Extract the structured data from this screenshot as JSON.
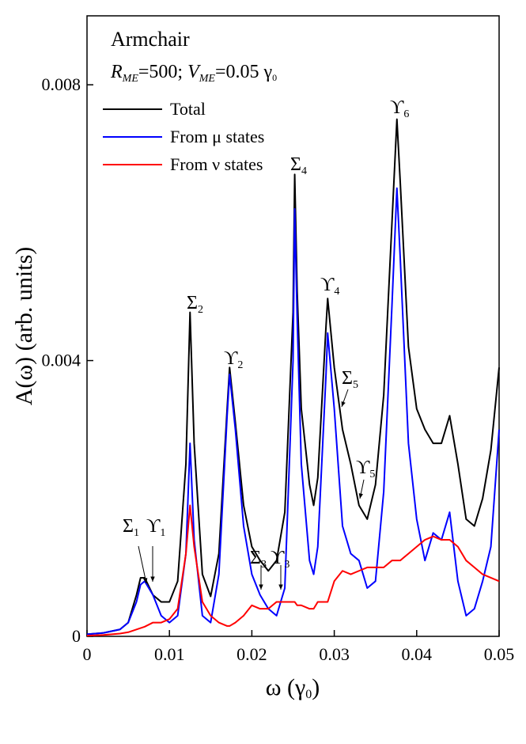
{
  "chart_data": {
    "type": "line",
    "title": "Armchair",
    "subtitle_parts": [
      "R",
      "ME",
      "=500; ",
      "V",
      "ME",
      "=0.05 γ",
      "0"
    ],
    "xlabel_parts": [
      "ω (γ",
      "0",
      ")"
    ],
    "ylabel": "A(ω) (arb. units)",
    "xlim": [
      0,
      0.05
    ],
    "ylim": [
      0,
      0.009
    ],
    "xticks": [
      0,
      0.01,
      0.02,
      0.03,
      0.04,
      0.05
    ],
    "yticks": [
      0,
      0.004,
      0.008
    ],
    "legend": "upper left",
    "x": [
      0,
      0.002,
      0.004,
      0.005,
      0.006,
      0.0065,
      0.007,
      0.008,
      0.009,
      0.01,
      0.011,
      0.012,
      0.0125,
      0.013,
      0.014,
      0.015,
      0.016,
      0.017,
      0.0173,
      0.018,
      0.019,
      0.02,
      0.021,
      0.022,
      0.023,
      0.024,
      0.025,
      0.0252,
      0.0255,
      0.026,
      0.027,
      0.0275,
      0.028,
      0.029,
      0.0292,
      0.03,
      0.031,
      0.032,
      0.033,
      0.034,
      0.035,
      0.036,
      0.037,
      0.0376,
      0.038,
      0.039,
      0.04,
      0.041,
      0.042,
      0.043,
      0.044,
      0.045,
      0.046,
      0.047,
      0.048,
      0.049,
      0.05
    ],
    "series": [
      {
        "name": "Total",
        "color": "#000000",
        "values": [
          3e-05,
          5e-05,
          0.0001,
          0.0002,
          0.0006,
          0.00085,
          0.00085,
          0.0006,
          0.0005,
          0.0005,
          0.0008,
          0.0025,
          0.0047,
          0.0028,
          0.0009,
          0.00058,
          0.0012,
          0.0033,
          0.0039,
          0.0031,
          0.0019,
          0.0013,
          0.0011,
          0.00095,
          0.0011,
          0.0018,
          0.0047,
          0.0067,
          0.005,
          0.0033,
          0.0022,
          0.0019,
          0.0023,
          0.0045,
          0.0049,
          0.0039,
          0.003,
          0.0025,
          0.0019,
          0.0017,
          0.0022,
          0.0035,
          0.006,
          0.0075,
          0.0066,
          0.0042,
          0.0033,
          0.003,
          0.0028,
          0.0028,
          0.0032,
          0.0025,
          0.0017,
          0.0016,
          0.002,
          0.0027,
          0.0039
        ]
      },
      {
        "name": "From μ states",
        "color": "#0000ff",
        "values": [
          3e-05,
          5e-05,
          0.0001,
          0.0002,
          0.0005,
          0.00075,
          0.0008,
          0.0006,
          0.0003,
          0.0002,
          0.0003,
          0.0012,
          0.0028,
          0.0014,
          0.0003,
          0.0002,
          0.0009,
          0.0032,
          0.0038,
          0.003,
          0.0016,
          0.0009,
          0.0006,
          0.0004,
          0.0003,
          0.0007,
          0.004,
          0.0062,
          0.0046,
          0.0025,
          0.0011,
          0.0009,
          0.0013,
          0.0038,
          0.0044,
          0.0033,
          0.0016,
          0.0012,
          0.0011,
          0.0007,
          0.0008,
          0.0021,
          0.0048,
          0.0065,
          0.0055,
          0.0028,
          0.0017,
          0.0011,
          0.0015,
          0.0014,
          0.0018,
          0.0008,
          0.0003,
          0.0004,
          0.0008,
          0.0013,
          0.003
        ]
      },
      {
        "name": "From ν states",
        "color": "#ff0000",
        "values": [
          1e-05,
          2e-05,
          4e-05,
          6e-05,
          0.0001,
          0.00012,
          0.00014,
          0.0002,
          0.0002,
          0.00025,
          0.0004,
          0.0012,
          0.0019,
          0.0013,
          0.0005,
          0.0003,
          0.0002,
          0.00015,
          0.00015,
          0.0002,
          0.0003,
          0.00045,
          0.0004,
          0.0004,
          0.0005,
          0.0005,
          0.0005,
          0.0005,
          0.00045,
          0.00045,
          0.0004,
          0.0004,
          0.0005,
          0.0005,
          0.0005,
          0.0008,
          0.00095,
          0.0009,
          0.00095,
          0.001,
          0.001,
          0.001,
          0.0011,
          0.0011,
          0.0011,
          0.0012,
          0.0013,
          0.0014,
          0.00145,
          0.0014,
          0.0014,
          0.0013,
          0.0011,
          0.001,
          0.0009,
          0.00085,
          0.0008
        ]
      }
    ],
    "annotations": [
      {
        "text": "Σ",
        "sub": "1"
      },
      {
        "text": "ϒ",
        "sub": "1"
      },
      {
        "text": "Σ",
        "sub": "2"
      },
      {
        "text": "ϒ",
        "sub": "2"
      },
      {
        "text": "Σ",
        "sub": "3"
      },
      {
        "text": "ϒ",
        "sub": "3"
      },
      {
        "text": "Σ",
        "sub": "4"
      },
      {
        "text": "ϒ",
        "sub": "4"
      },
      {
        "text": "Σ",
        "sub": "5"
      },
      {
        "text": "ϒ",
        "sub": "5"
      },
      {
        "text": "ϒ",
        "sub": "6"
      }
    ]
  }
}
